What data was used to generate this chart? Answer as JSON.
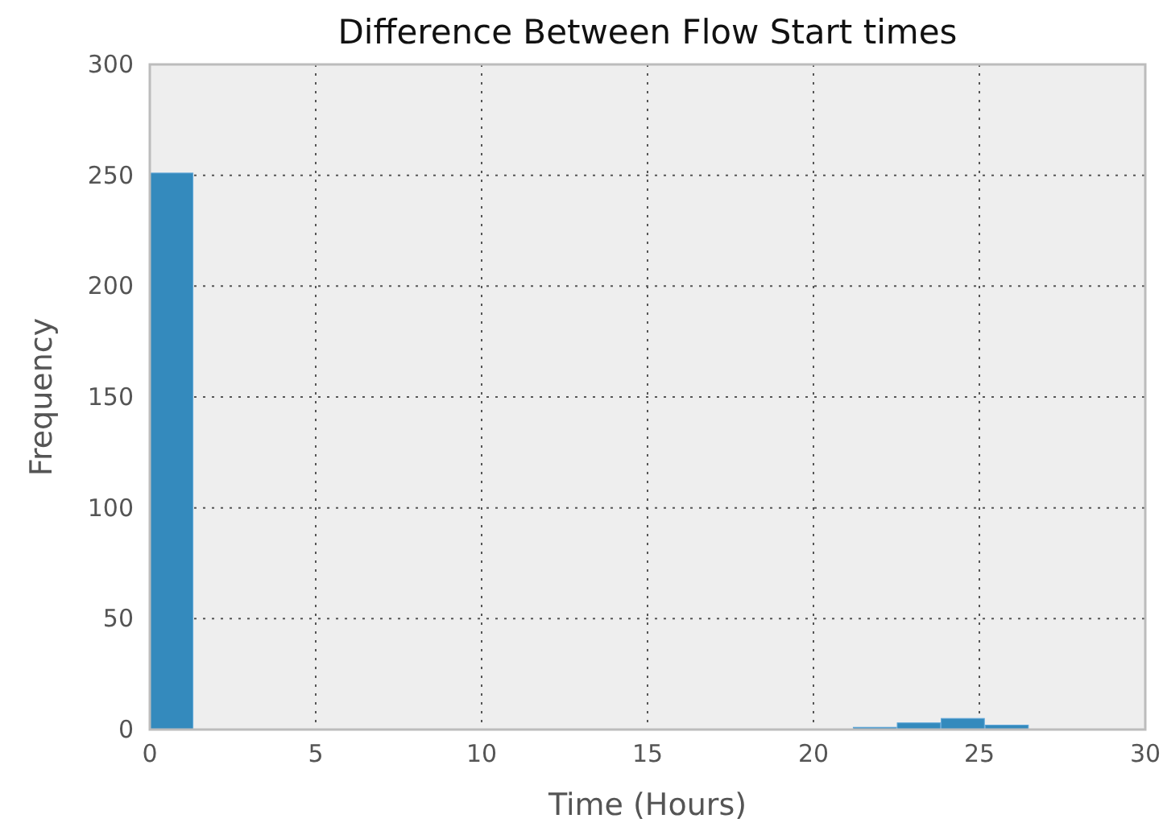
{
  "chart_data": {
    "type": "histogram",
    "title": "Difference Between Flow Start times",
    "xlabel": "Time (Hours)",
    "ylabel": "Frequency",
    "bins": [
      0,
      1.325,
      2.65,
      3.975,
      5.3,
      6.625,
      7.95,
      9.275,
      10.6,
      11.925,
      13.25,
      14.575,
      15.9,
      17.225,
      18.55,
      19.875,
      21.2,
      22.525,
      23.85,
      25.175,
      26.5
    ],
    "values": [
      251,
      0,
      0,
      0,
      0,
      0,
      0,
      0,
      0,
      0,
      0,
      0,
      0,
      0,
      0,
      0,
      1,
      3,
      5,
      2
    ],
    "color": "#348abd",
    "xlim": [
      0,
      30
    ],
    "ylim": [
      0,
      300
    ],
    "xticks": [
      0,
      5,
      10,
      15,
      20,
      25,
      30
    ],
    "yticks": [
      0,
      50,
      100,
      150,
      200,
      250,
      300
    ],
    "grid": true
  }
}
